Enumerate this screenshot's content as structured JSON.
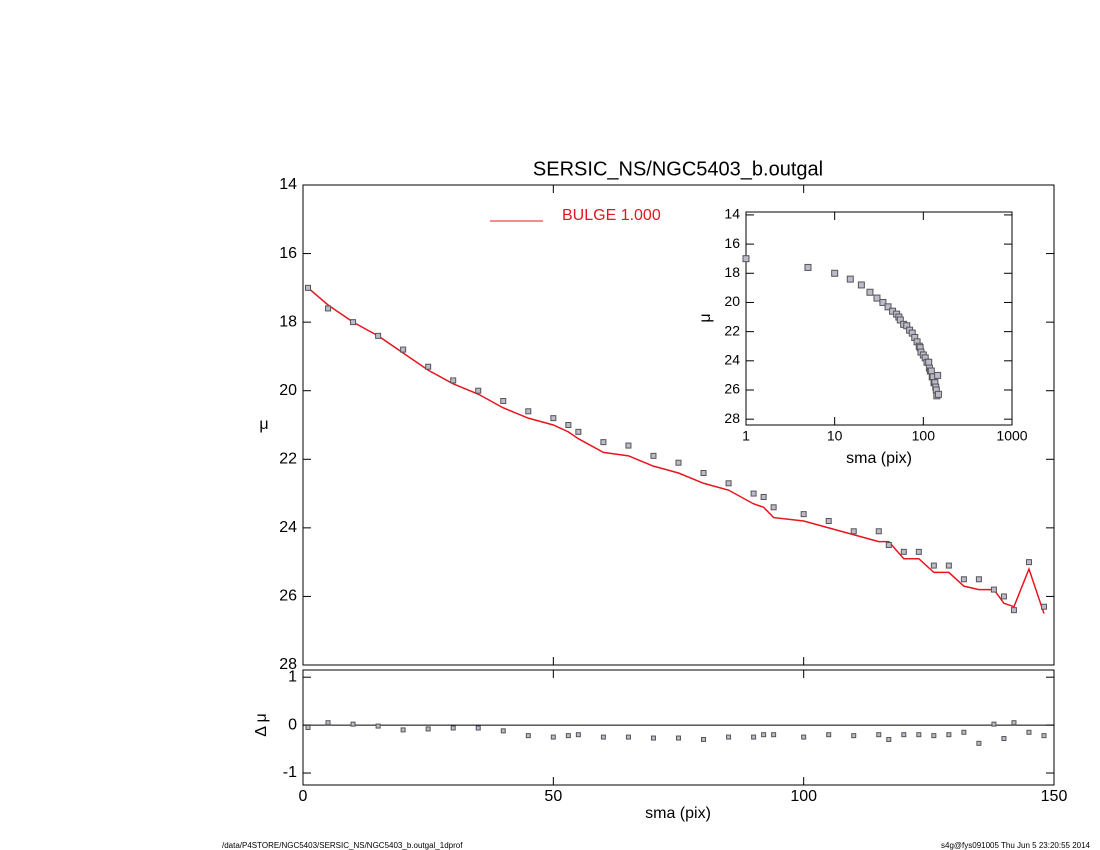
{
  "chart_data": [
    {
      "type": "scatter",
      "title": "SERSIC_NS/NGC5403_b.outgal",
      "ylabel": "μ",
      "xlabel": "sma (pix)",
      "xlim": [
        0,
        150
      ],
      "xticks": [
        0,
        50,
        100,
        150
      ],
      "ylim": [
        28,
        14
      ],
      "yticks": [
        14,
        16,
        18,
        20,
        22,
        24,
        26,
        28
      ],
      "x": [
        1,
        5,
        10,
        15,
        20,
        25,
        30,
        35,
        40,
        45,
        50,
        53,
        55,
        60,
        65,
        70,
        75,
        80,
        85,
        90,
        92,
        94,
        100,
        105,
        110,
        115,
        117,
        120,
        123,
        126,
        129,
        132,
        135,
        138,
        140,
        142,
        145,
        148
      ],
      "series": [
        {
          "color": "#555555",
          "values": [
            17.0,
            17.6,
            18.0,
            18.4,
            18.8,
            19.3,
            19.7,
            20.0,
            20.3,
            20.6,
            20.8,
            21.0,
            21.2,
            21.5,
            21.6,
            21.9,
            22.1,
            22.4,
            22.7,
            23.0,
            23.1,
            23.4,
            23.6,
            23.8,
            24.1,
            24.1,
            24.5,
            24.7,
            24.7,
            25.1,
            25.1,
            25.5,
            25.5,
            25.8,
            26.0,
            26.4,
            25.0,
            26.3
          ]
        },
        {
          "name": "BULGE  1.000",
          "color": "#e8141e",
          "values": [
            17.0,
            17.5,
            18.0,
            18.4,
            18.9,
            19.4,
            19.8,
            20.1,
            20.5,
            20.8,
            21.0,
            21.2,
            21.4,
            21.8,
            21.9,
            22.2,
            22.4,
            22.7,
            22.9,
            23.3,
            23.4,
            23.7,
            23.8,
            24.0,
            24.2,
            24.4,
            24.4,
            24.9,
            24.9,
            25.3,
            25.3,
            25.7,
            25.8,
            25.8,
            26.2,
            26.3,
            25.2,
            26.5
          ]
        }
      ]
    },
    {
      "type": "scatter",
      "ylabel": "Δ μ",
      "ylim": [
        -1.25,
        1.15
      ],
      "yticks": [
        -1,
        0,
        1
      ],
      "values": [
        -0.05,
        0.05,
        0.02,
        -0.02,
        -0.1,
        -0.08,
        -0.06,
        -0.06,
        -0.12,
        -0.22,
        -0.25,
        -0.22,
        -0.2,
        -0.25,
        -0.25,
        -0.27,
        -0.27,
        -0.3,
        -0.25,
        -0.25,
        -0.2,
        -0.2,
        -0.25,
        -0.2,
        -0.22,
        -0.2,
        -0.3,
        -0.2,
        -0.2,
        -0.22,
        -0.2,
        -0.15,
        -0.38,
        0.02,
        -0.28,
        0.05,
        -0.15,
        -0.22
      ]
    },
    {
      "type": "scatter",
      "ylabel": "μ",
      "xlabel": "sma (pix)",
      "log_x": true,
      "xlim": [
        1,
        1000
      ],
      "xticks": [
        1,
        10,
        100,
        1000
      ],
      "ylim": [
        28.4,
        13.8
      ],
      "yticks": [
        14,
        16,
        18,
        20,
        22,
        24,
        26,
        28
      ]
    }
  ],
  "footer": {
    "left": "/data/P4STORE/NGC5403/SERSIC_NS/NGC5403_b.outgal_1dprof",
    "right": "s4g@fys091005  Thu Jun  5 23:20:55 2014"
  }
}
